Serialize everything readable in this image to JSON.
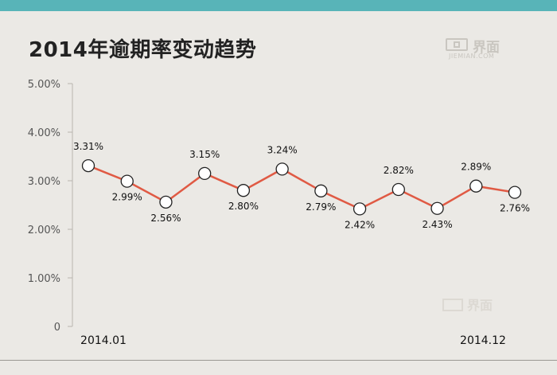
{
  "header": {
    "title": "2014年逾期率变动趋势",
    "logo_text": "界面",
    "logo_sub": "JIEMIAN.COM"
  },
  "watermark": {
    "text": "界面"
  },
  "colors": {
    "topbar": "#58b4b8",
    "line": "#e05a44",
    "background": "#ebe9e5"
  },
  "chart_data": {
    "type": "line",
    "title": "2014年逾期率变动趋势",
    "xlabel": "",
    "ylabel": "",
    "x_tick_labels": [
      "2014.01",
      "2014.12"
    ],
    "y_tick_labels": [
      "0",
      "1.00%",
      "2.00%",
      "3.00%",
      "4.00%",
      "5.00%"
    ],
    "ylim": [
      0,
      5
    ],
    "grid": false,
    "series": [
      {
        "values": [
          3.31,
          2.99,
          2.56,
          3.15,
          2.8,
          3.24,
          2.79,
          2.42,
          2.82,
          2.43,
          2.89,
          2.76
        ],
        "labels": [
          "3.31%",
          "2.99%",
          "2.56%",
          "3.15%",
          "2.80%",
          "3.24%",
          "2.79%",
          "2.42%",
          "2.82%",
          "2.43%",
          "2.89%",
          "2.76%"
        ]
      }
    ]
  }
}
